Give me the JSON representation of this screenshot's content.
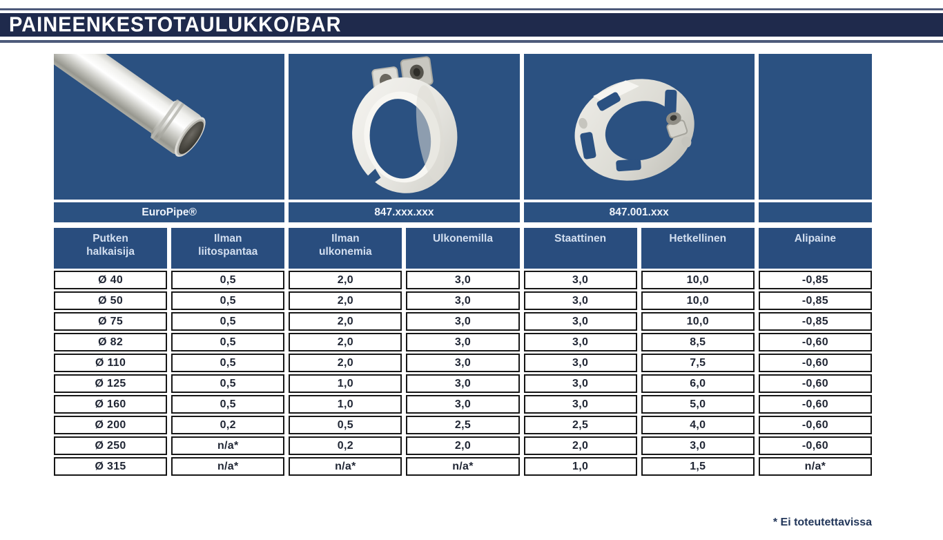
{
  "page": {
    "title": "PAINEENKESTOTAULUKKO/BAR",
    "footnote": "* Ei toteutettavissa"
  },
  "products": [
    {
      "label": "EuroPipe®",
      "image": "pipe-photo"
    },
    {
      "label": "847.xxx.xxx",
      "image": "clamp-photo"
    },
    {
      "label": "847.001.xxx",
      "image": "flange-photo"
    },
    {
      "label": "",
      "image": "none"
    }
  ],
  "table": {
    "headers": [
      "Putken\nhalkaisija",
      "Ilman\nliitospantaa",
      "Ilman\nulkonemia",
      "Ulkonemilla",
      "Staattinen",
      "Hetkellinen",
      "Alipaine"
    ],
    "rows": [
      [
        "Ø 40",
        "0,5",
        "2,0",
        "3,0",
        "3,0",
        "10,0",
        "-0,85"
      ],
      [
        "Ø 50",
        "0,5",
        "2,0",
        "3,0",
        "3,0",
        "10,0",
        "-0,85"
      ],
      [
        "Ø 75",
        "0,5",
        "2,0",
        "3,0",
        "3,0",
        "10,0",
        "-0,85"
      ],
      [
        "Ø 82",
        "0,5",
        "2,0",
        "3,0",
        "3,0",
        "8,5",
        "-0,60"
      ],
      [
        "Ø 110",
        "0,5",
        "2,0",
        "3,0",
        "3,0",
        "7,5",
        "-0,60"
      ],
      [
        "Ø 125",
        "0,5",
        "1,0",
        "3,0",
        "3,0",
        "6,0",
        "-0,60"
      ],
      [
        "Ø 160",
        "0,5",
        "1,0",
        "3,0",
        "3,0",
        "5,0",
        "-0,60"
      ],
      [
        "Ø 200",
        "0,2",
        "0,5",
        "2,5",
        "2,5",
        "4,0",
        "-0,60"
      ],
      [
        "Ø 250",
        "n/a*",
        "0,2",
        "2,0",
        "2,0",
        "3,0",
        "-0,60"
      ],
      [
        "Ø 315",
        "n/a*",
        "n/a*",
        "n/a*",
        "1,0",
        "1,5",
        "n/a*"
      ]
    ]
  },
  "colors": {
    "title_bar_bg": "#1f2a4c",
    "rule": "#4d5a7a",
    "cell_blue": "#2b5181",
    "header_blue": "#294d7e",
    "header_text": "#d3dff0",
    "label_text": "#eef3fa",
    "data_text": "#1f2533",
    "cell_border": "#161616",
    "footnote_text": "#23375a"
  }
}
